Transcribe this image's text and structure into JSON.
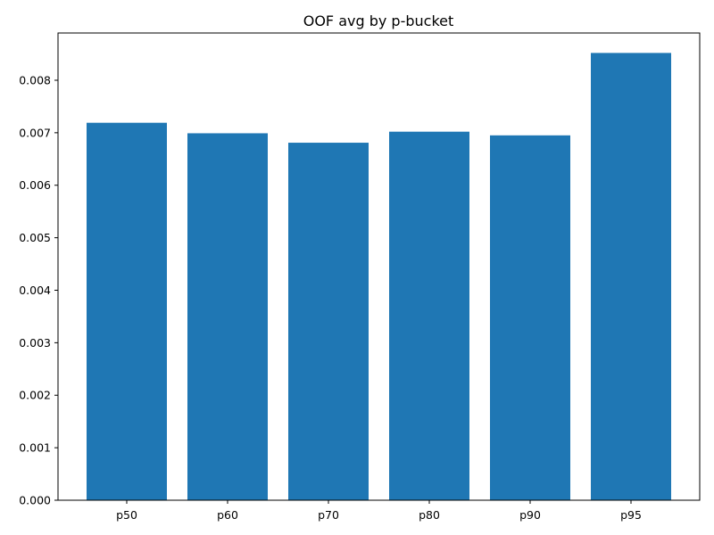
{
  "chart_data": {
    "type": "bar",
    "title": "OOF avg by p-bucket",
    "xlabel": "",
    "ylabel": "",
    "categories": [
      "p50",
      "p60",
      "p70",
      "p80",
      "p90",
      "p95"
    ],
    "values": [
      0.00719,
      0.00699,
      0.00681,
      0.00702,
      0.00695,
      0.00852
    ],
    "ylim": [
      0,
      0.0089
    ],
    "yticks": [
      0.0,
      0.001,
      0.002,
      0.003,
      0.004,
      0.005,
      0.006,
      0.007,
      0.008
    ],
    "ytick_labels": [
      "0.000",
      "0.001",
      "0.002",
      "0.003",
      "0.004",
      "0.005",
      "0.006",
      "0.007",
      "0.008"
    ],
    "bar_color": "#1f77b4",
    "grid": false,
    "legend": "none"
  }
}
